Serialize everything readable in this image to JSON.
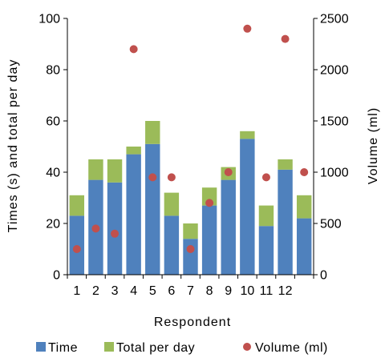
{
  "chart_data": {
    "type": "bar",
    "xlabel": "Respondent",
    "ylabel": "Times (s) and total per day",
    "y2label": "Volume (ml)",
    "categories": [
      "1",
      "2",
      "3",
      "4",
      "5",
      "6",
      "7",
      "8",
      "9",
      "10",
      "11",
      "12",
      ""
    ],
    "ylim": [
      0,
      100
    ],
    "y2lim": [
      0,
      2500
    ],
    "yticks": [
      0,
      20,
      40,
      60,
      80,
      100
    ],
    "y2ticks": [
      0,
      500,
      1000,
      1500,
      2000,
      2500
    ],
    "stacked": true,
    "series": [
      {
        "name": "Time",
        "kind": "bar",
        "axis": "left",
        "color": "#4f81bd",
        "values": [
          23,
          37,
          36,
          47,
          51,
          23,
          14,
          27,
          37,
          53,
          19,
          41,
          22
        ]
      },
      {
        "name": "Total per day",
        "kind": "bar",
        "axis": "left",
        "color": "#9bbb59",
        "values": [
          8,
          8,
          9,
          3,
          9,
          9,
          6,
          7,
          5,
          3,
          8,
          4,
          9
        ]
      },
      {
        "name": "Volume (ml)",
        "kind": "scatter",
        "axis": "right",
        "color": "#c0504d",
        "values": [
          250,
          450,
          400,
          2200,
          950,
          950,
          250,
          700,
          1000,
          2400,
          950,
          2300,
          1000
        ]
      }
    ],
    "legend_position": "bottom",
    "grid": false
  }
}
